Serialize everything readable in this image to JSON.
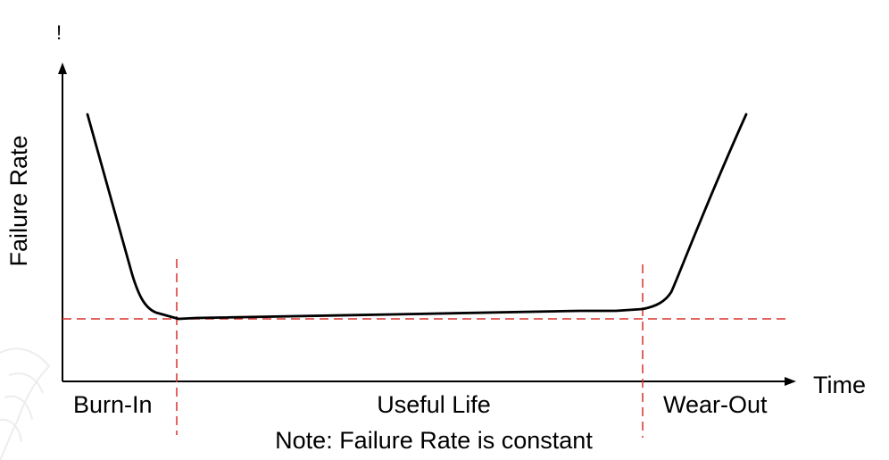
{
  "stray_mark": "!",
  "axes": {
    "y_label": "Failure Rate",
    "x_label": "Time"
  },
  "phases": {
    "burn_in": "Burn-In",
    "useful_life": "Useful Life",
    "wear_out": "Wear-Out"
  },
  "note": "Note: Failure Rate is constant",
  "colors": {
    "curve": "#000000",
    "guides": "#d9302c",
    "axes": "#000000"
  }
}
